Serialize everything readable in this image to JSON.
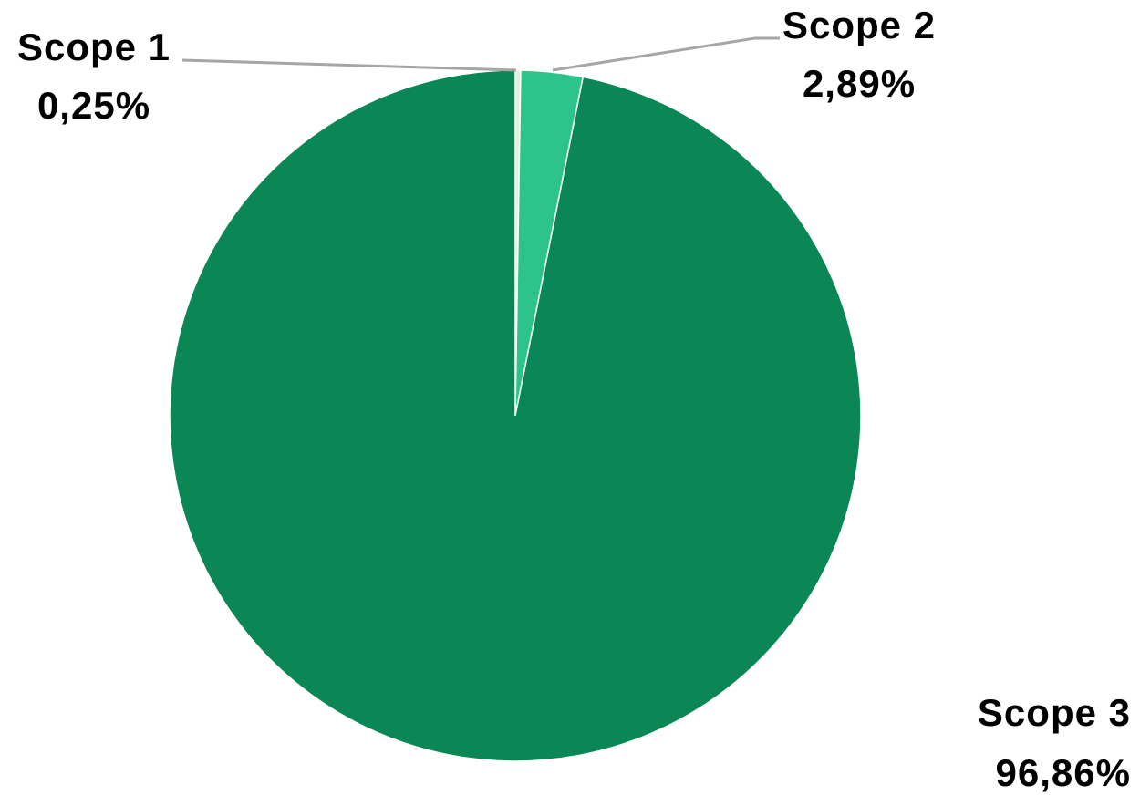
{
  "chart_data": {
    "type": "pie",
    "title": "",
    "slices": [
      {
        "name": "Scope 1",
        "value": 0.25,
        "label": "0,25%",
        "color": "#E2F0D9"
      },
      {
        "name": "Scope 2",
        "value": 2.89,
        "label": "2,89%",
        "color": "#2DC48A"
      },
      {
        "name": "Scope 3",
        "value": 96.86,
        "label": "96,86%",
        "color": "#0B8756"
      }
    ],
    "start_angle_deg": 0,
    "direction": "clockwise",
    "leader_line_color": "#A6A6A6",
    "slice_border_color": "#FFFFFF"
  }
}
